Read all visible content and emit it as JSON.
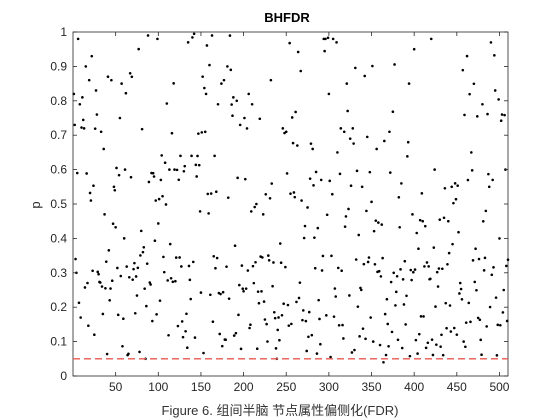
{
  "caption": "Figure 6. 组间半脑 节点属性偏侧化(FDR)",
  "colors": {
    "points": "#000000",
    "threshold": "#e8584e",
    "axis": "#262626",
    "background": "#ffffff"
  },
  "chart_data": {
    "type": "scatter",
    "title": "BHFDR",
    "xlabel": "",
    "ylabel": "p",
    "xlim": [
      0,
      510
    ],
    "ylim": [
      0,
      1
    ],
    "xticks": [
      50,
      100,
      150,
      200,
      250,
      300,
      350,
      400,
      450,
      500
    ],
    "yticks": [
      0,
      0.1,
      0.2,
      0.3,
      0.4,
      0.5,
      0.6,
      0.7,
      0.8,
      0.9,
      1
    ],
    "threshold": {
      "y": 0.05,
      "style": "dashed"
    },
    "n_points": 510,
    "sample_points": [
      [
        1,
        0.82
      ],
      [
        2,
        0.73
      ],
      [
        3,
        0.34
      ],
      [
        4,
        0.3
      ],
      [
        5,
        0.59
      ],
      [
        6,
        0.98
      ],
      [
        8,
        0.79
      ],
      [
        9,
        0.17
      ],
      [
        11,
        0.81
      ],
      [
        13,
        0.72
      ],
      [
        15,
        0.9
      ],
      [
        19,
        0.86
      ],
      [
        21,
        0.51
      ],
      [
        25,
        0.12
      ],
      [
        27,
        0.83
      ],
      [
        28,
        0.76
      ],
      [
        33,
        0.71
      ],
      [
        36,
        0.66
      ],
      [
        37,
        0.47
      ],
      [
        41,
        0.87
      ],
      [
        45,
        0.86
      ],
      [
        48,
        0.55
      ],
      [
        49,
        0.54
      ],
      [
        55,
        0.75
      ],
      [
        57,
        0.85
      ],
      [
        61,
        0.6
      ],
      [
        67,
        0.88
      ],
      [
        70,
        0.28
      ],
      [
        78,
        0.07
      ],
      [
        82,
        0.36
      ],
      [
        85,
        0.05
      ],
      [
        88,
        0.99
      ],
      [
        92,
        0.59
      ],
      [
        97,
        0.51
      ],
      [
        99,
        0.98
      ],
      [
        103,
        0.57
      ],
      [
        108,
        0.62
      ],
      [
        113,
        0.6
      ],
      [
        119,
        0.6
      ],
      [
        126,
        0.64
      ],
      [
        131,
        0.61
      ],
      [
        135,
        0.97
      ],
      [
        139,
        0.64
      ],
      [
        145,
        0.58
      ],
      [
        156,
        0.82
      ],
      [
        163,
        0.99
      ],
      [
        166,
        0.64
      ],
      [
        170,
        0.79
      ],
      [
        174,
        0.85
      ],
      [
        177,
        0.86
      ],
      [
        181,
        0.9
      ],
      [
        185,
        0.89
      ],
      [
        188,
        0.81
      ],
      [
        192,
        0.8
      ],
      [
        196,
        0.73
      ],
      [
        201,
        0.75
      ],
      [
        206,
        0.82
      ],
      [
        210,
        0.79
      ],
      [
        215,
        0.5
      ],
      [
        223,
        0.47
      ],
      [
        229,
        0.35
      ],
      [
        232,
        0.86
      ],
      [
        235,
        0.33
      ],
      [
        239,
        0.05
      ],
      [
        246,
        0.72
      ],
      [
        250,
        0.71
      ],
      [
        255,
        0.53
      ],
      [
        260,
        0.52
      ],
      [
        263,
        0.67
      ],
      [
        268,
        0.51
      ],
      [
        275,
        0.49
      ],
      [
        281,
        0.66
      ],
      [
        287,
        0.43
      ],
      [
        291,
        0.57
      ],
      [
        294,
        0.98
      ],
      [
        296,
        0.98
      ],
      [
        300,
        0.82
      ],
      [
        305,
        0.98
      ],
      [
        309,
        0.97
      ],
      [
        314,
        0.72
      ],
      [
        318,
        0.71
      ],
      [
        321,
        0.85
      ],
      [
        325,
        0.69
      ],
      [
        328,
        0.72
      ],
      [
        335,
        0.41
      ],
      [
        339,
        0.55
      ],
      [
        344,
        0.48
      ],
      [
        349,
        0.17
      ],
      [
        352,
        0.1
      ],
      [
        356,
        0.66
      ],
      [
        360,
        0.09
      ],
      [
        364,
        0.04
      ],
      [
        371,
        0.71
      ],
      [
        376,
        0.3
      ],
      [
        380,
        0.29
      ],
      [
        384,
        0.31
      ],
      [
        390,
        0.15
      ],
      [
        394,
        0.85
      ],
      [
        398,
        0.47
      ],
      [
        400,
        0.95
      ],
      [
        405,
        0.37
      ],
      [
        410,
        0.45
      ],
      [
        415,
        0.33
      ],
      [
        420,
        0.98
      ],
      [
        424,
        0.6
      ],
      [
        428,
        0.26
      ],
      [
        435,
        0.46
      ],
      [
        440,
        0.45
      ],
      [
        444,
        0.55
      ],
      [
        448,
        0.56
      ],
      [
        453,
        0.24
      ],
      [
        458,
        0.1
      ],
      [
        462,
        0.93
      ],
      [
        467,
        0.65
      ],
      [
        472,
        0.37
      ],
      [
        476,
        0.34
      ],
      [
        480,
        0.79
      ],
      [
        484,
        0.48
      ],
      [
        488,
        0.55
      ],
      [
        492,
        0.57
      ],
      [
        495,
        0.83
      ],
      [
        497,
        0.06
      ],
      [
        500,
        0.4
      ],
      [
        503,
        0.76
      ],
      [
        505,
        0.25
      ],
      [
        507,
        0.6
      ],
      [
        509,
        0.16
      ]
    ]
  }
}
